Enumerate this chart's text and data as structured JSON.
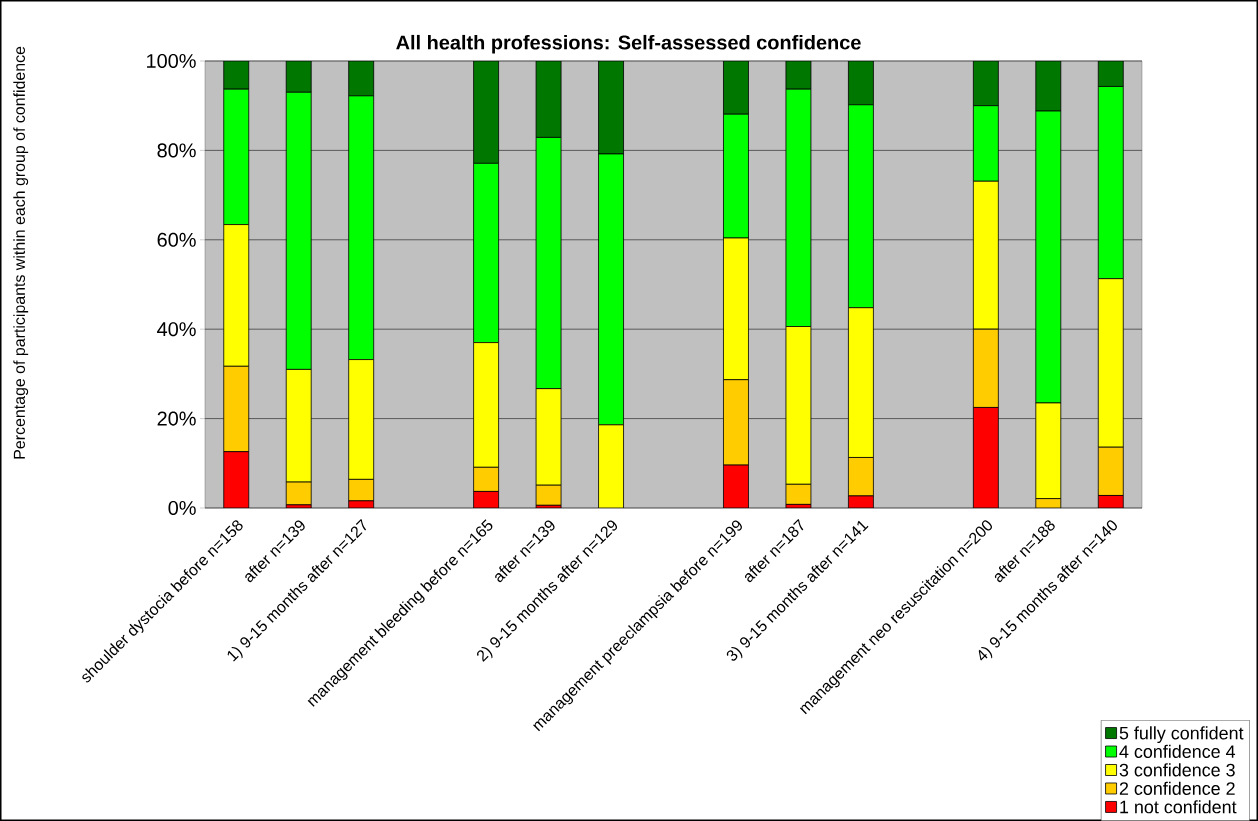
{
  "chart_data": {
    "type": "bar",
    "stacked": true,
    "title": "All health professions: Self-assessed confidence",
    "ylabel": "Percentage of participants within each group of confidence",
    "categories": [
      "shoulder dystocia before n=158",
      "after n=139",
      "1) 9-15 months after n=127",
      null,
      "management bleeding before n=165",
      "after n=139",
      "2) 9-15 months after n=129",
      null,
      "management preeclampsia before n=199",
      "after n=187",
      "3) 9-15 months after n=141",
      null,
      "management neo resuscitation n=200",
      "after n=188",
      "4) 9-15 months after n=140"
    ],
    "series": [
      {
        "name": "1 not confident",
        "color": "#ff0000",
        "values": [
          12.6,
          0.7,
          1.6,
          null,
          3.7,
          0.6,
          0,
          null,
          9.6,
          0.8,
          2.7,
          null,
          22.5,
          0,
          2.8
        ]
      },
      {
        "name": "2 confidence 2",
        "color": "#ffcc00",
        "values": [
          19.1,
          5.1,
          4.8,
          null,
          5.4,
          4.5,
          0,
          null,
          19.1,
          4.5,
          8.6,
          null,
          17.5,
          2.1,
          10.8
        ]
      },
      {
        "name": "3 confidence 3",
        "color": "#ffff00",
        "values": [
          31.7,
          25.2,
          26.8,
          null,
          27.9,
          21.6,
          18.6,
          null,
          31.7,
          35.3,
          33.5,
          null,
          33.1,
          21.4,
          37.7
        ]
      },
      {
        "name": "4 confidence 4",
        "color": "#00ff00",
        "values": [
          30.3,
          62.0,
          59.0,
          null,
          40.1,
          56.2,
          60.6,
          null,
          27.7,
          53.1,
          45.4,
          null,
          16.9,
          65.3,
          43.0
        ]
      },
      {
        "name": "5 fully confident",
        "color": "#007800",
        "values": [
          6.3,
          7.0,
          7.8,
          null,
          22.9,
          17.1,
          20.8,
          null,
          11.9,
          6.3,
          9.8,
          null,
          10.0,
          11.2,
          5.7
        ]
      }
    ],
    "ylim": [
      0,
      100
    ],
    "yticks": [
      {
        "value": 0,
        "label": "0%"
      },
      {
        "value": 20,
        "label": "20%"
      },
      {
        "value": 40,
        "label": "40%"
      },
      {
        "value": 60,
        "label": "60%"
      },
      {
        "value": 80,
        "label": "80%"
      },
      {
        "value": 100,
        "label": "100%"
      }
    ],
    "grid": "y",
    "legend": "bottom right"
  }
}
